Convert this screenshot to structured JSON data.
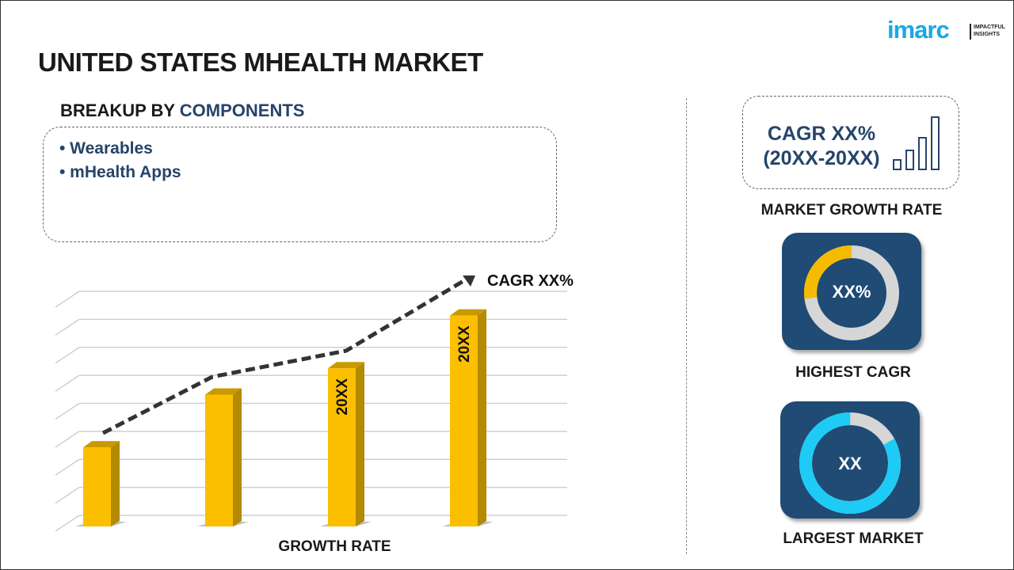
{
  "title": "UNITED STATES MHEALTH MARKET",
  "logo": {
    "name": "imarc",
    "tagline_1": "IMPACTFUL",
    "tagline_2": "INSIGHTS"
  },
  "breakup": {
    "prefix": "BREAKUP BY ",
    "highlight": "COMPONENTS",
    "items": [
      "• Wearables",
      "• mHealth Apps"
    ]
  },
  "cagr_box": {
    "line1": "CAGR XX%",
    "line2": "(20XX-20XX)",
    "icon": "bar-growth-icon",
    "label": "MARKET GROWTH RATE"
  },
  "highest": {
    "value": "XX%",
    "label": "HIGHEST CAGR",
    "fill_fraction": 0.27,
    "color": "#f5bb00"
  },
  "largest": {
    "value": "XX",
    "label": "LARGEST MARKET",
    "fill_fraction": 0.83,
    "color": "#1ecbf5"
  },
  "chart_data": {
    "type": "bar",
    "xlabel": "GROWTH RATE",
    "annotation": "CAGR XX%",
    "bar_labels": [
      "",
      "",
      "20XX",
      "20XX"
    ],
    "values": [
      3,
      5,
      6,
      8
    ],
    "ylim": [
      0,
      8.5
    ],
    "bar_color": "#fbbf00",
    "trend": "dashed-arrow",
    "grid": true
  }
}
